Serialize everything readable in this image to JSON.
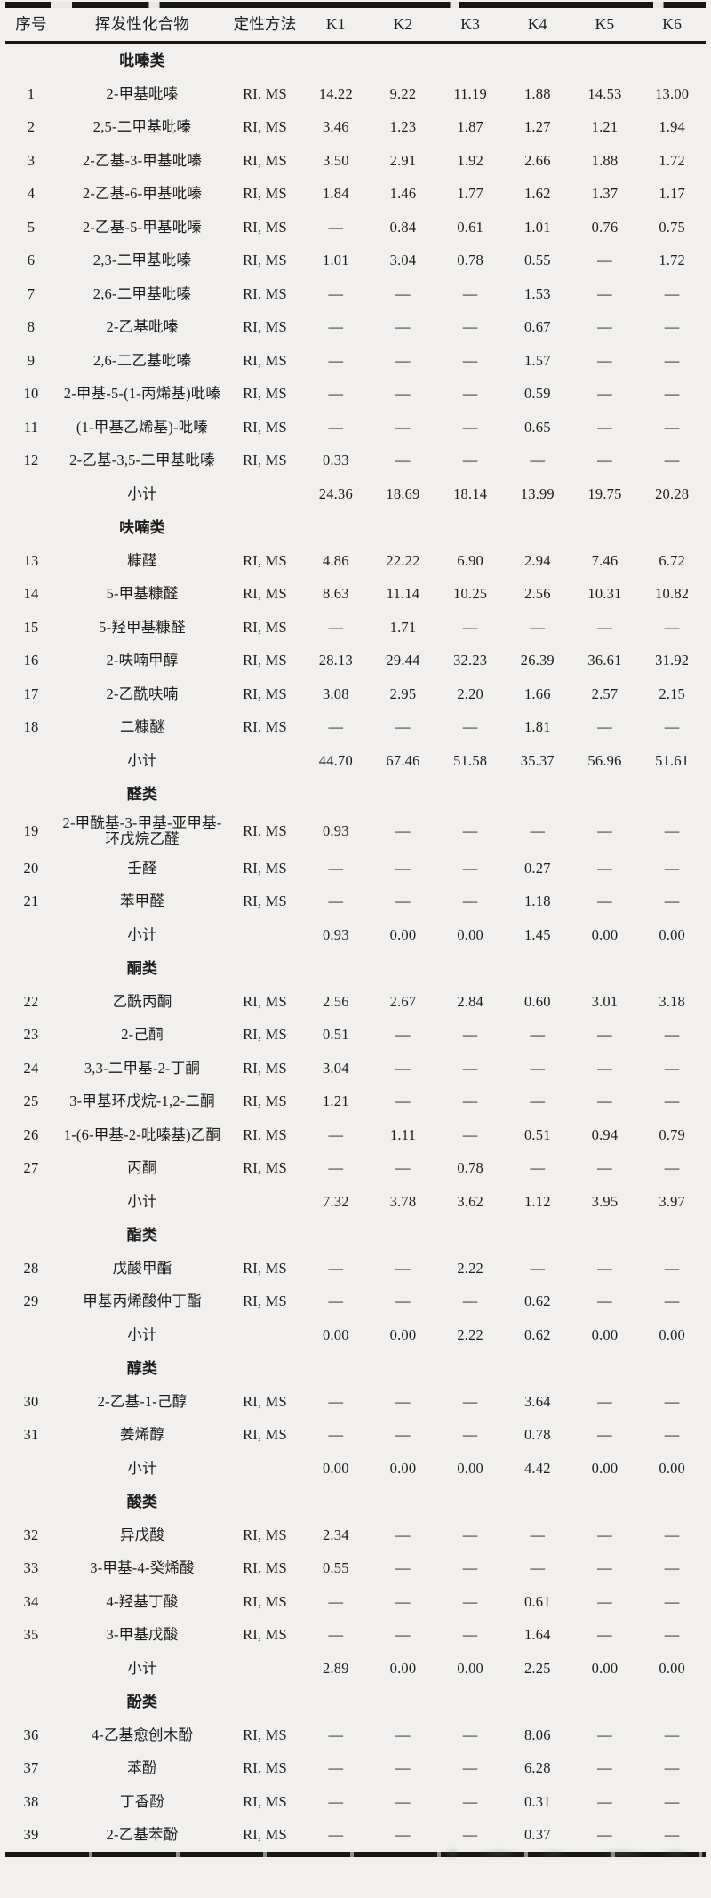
{
  "page_background": "#f1f0ee",
  "text_color": "#1c1c1c",
  "table": {
    "columns": [
      "序号",
      "挥发性化合物",
      "定性方法",
      "K1",
      "K2",
      "K3",
      "K4",
      "K5",
      "K6"
    ],
    "subtotal_label": "小计",
    "dash": "—",
    "sections": [
      {
        "name": "吡嗪类",
        "rows": [
          {
            "no": "1",
            "compound": "2-甲基吡嗪",
            "method": "RI, MS",
            "values": [
              "14.22",
              "9.22",
              "11.19",
              "1.88",
              "14.53",
              "13.00"
            ]
          },
          {
            "no": "2",
            "compound": "2,5-二甲基吡嗪",
            "method": "RI, MS",
            "values": [
              "3.46",
              "1.23",
              "1.87",
              "1.27",
              "1.21",
              "1.94"
            ]
          },
          {
            "no": "3",
            "compound": "2-乙基-3-甲基吡嗪",
            "method": "RI, MS",
            "values": [
              "3.50",
              "2.91",
              "1.92",
              "2.66",
              "1.88",
              "1.72"
            ]
          },
          {
            "no": "4",
            "compound": "2-乙基-6-甲基吡嗪",
            "method": "RI, MS",
            "values": [
              "1.84",
              "1.46",
              "1.77",
              "1.62",
              "1.37",
              "1.17"
            ]
          },
          {
            "no": "5",
            "compound": "2-乙基-5-甲基吡嗪",
            "method": "RI, MS",
            "values": [
              "—",
              "0.84",
              "0.61",
              "1.01",
              "0.76",
              "0.75"
            ]
          },
          {
            "no": "6",
            "compound": "2,3-二甲基吡嗪",
            "method": "RI, MS",
            "values": [
              "1.01",
              "3.04",
              "0.78",
              "0.55",
              "—",
              "1.72"
            ]
          },
          {
            "no": "7",
            "compound": "2,6-二甲基吡嗪",
            "method": "RI, MS",
            "values": [
              "—",
              "—",
              "—",
              "1.53",
              "—",
              "—"
            ]
          },
          {
            "no": "8",
            "compound": "2-乙基吡嗪",
            "method": "RI, MS",
            "values": [
              "—",
              "—",
              "—",
              "0.67",
              "—",
              "—"
            ]
          },
          {
            "no": "9",
            "compound": "2,6-二乙基吡嗪",
            "method": "RI, MS",
            "values": [
              "—",
              "—",
              "—",
              "1.57",
              "—",
              "—"
            ]
          },
          {
            "no": "10",
            "compound": "2-甲基-5-(1-丙烯基)吡嗪",
            "method": "RI, MS",
            "values": [
              "—",
              "—",
              "—",
              "0.59",
              "—",
              "—"
            ]
          },
          {
            "no": "11",
            "compound": "(1-甲基乙烯基)-吡嗪",
            "method": "RI, MS",
            "values": [
              "—",
              "—",
              "—",
              "0.65",
              "—",
              "—"
            ]
          },
          {
            "no": "12",
            "compound": "2-乙基-3,5-二甲基吡嗪",
            "method": "RI, MS",
            "values": [
              "0.33",
              "—",
              "—",
              "—",
              "—",
              "—"
            ]
          }
        ],
        "subtotal": [
          "24.36",
          "18.69",
          "18.14",
          "13.99",
          "19.75",
          "20.28"
        ]
      },
      {
        "name": "呋喃类",
        "rows": [
          {
            "no": "13",
            "compound": "糠醛",
            "method": "RI, MS",
            "values": [
              "4.86",
              "22.22",
              "6.90",
              "2.94",
              "7.46",
              "6.72"
            ]
          },
          {
            "no": "14",
            "compound": "5-甲基糠醛",
            "method": "RI, MS",
            "values": [
              "8.63",
              "11.14",
              "10.25",
              "2.56",
              "10.31",
              "10.82"
            ]
          },
          {
            "no": "15",
            "compound": "5-羟甲基糠醛",
            "method": "RI, MS",
            "values": [
              "—",
              "1.71",
              "—",
              "—",
              "—",
              "—"
            ]
          },
          {
            "no": "16",
            "compound": "2-呋喃甲醇",
            "method": "RI, MS",
            "values": [
              "28.13",
              "29.44",
              "32.23",
              "26.39",
              "36.61",
              "31.92"
            ]
          },
          {
            "no": "17",
            "compound": "2-乙酰呋喃",
            "method": "RI, MS",
            "values": [
              "3.08",
              "2.95",
              "2.20",
              "1.66",
              "2.57",
              "2.15"
            ]
          },
          {
            "no": "18",
            "compound": "二糠醚",
            "method": "RI, MS",
            "values": [
              "—",
              "—",
              "—",
              "1.81",
              "—",
              "—"
            ]
          }
        ],
        "subtotal": [
          "44.70",
          "67.46",
          "51.58",
          "35.37",
          "56.96",
          "51.61"
        ]
      },
      {
        "name": "醛类",
        "rows": [
          {
            "no": "19",
            "compound": "2-甲酰基-3-甲基-亚甲基-环戊烷乙醛",
            "method": "RI, MS",
            "values": [
              "0.93",
              "—",
              "—",
              "—",
              "—",
              "—"
            ]
          },
          {
            "no": "20",
            "compound": "壬醛",
            "method": "RI, MS",
            "values": [
              "—",
              "—",
              "—",
              "0.27",
              "—",
              "—"
            ]
          },
          {
            "no": "21",
            "compound": "苯甲醛",
            "method": "RI, MS",
            "values": [
              "—",
              "—",
              "—",
              "1.18",
              "—",
              "—"
            ]
          }
        ],
        "subtotal": [
          "0.93",
          "0.00",
          "0.00",
          "1.45",
          "0.00",
          "0.00"
        ]
      },
      {
        "name": "酮类",
        "rows": [
          {
            "no": "22",
            "compound": "乙酰丙酮",
            "method": "RI, MS",
            "values": [
              "2.56",
              "2.67",
              "2.84",
              "0.60",
              "3.01",
              "3.18"
            ]
          },
          {
            "no": "23",
            "compound": "2-己酮",
            "method": "RI, MS",
            "values": [
              "0.51",
              "—",
              "—",
              "—",
              "—",
              "—"
            ]
          },
          {
            "no": "24",
            "compound": "3,3-二甲基-2-丁酮",
            "method": "RI, MS",
            "values": [
              "3.04",
              "—",
              "—",
              "—",
              "—",
              "—"
            ]
          },
          {
            "no": "25",
            "compound": "3-甲基环戊烷-1,2-二酮",
            "method": "RI, MS",
            "values": [
              "1.21",
              "—",
              "—",
              "—",
              "—",
              "—"
            ]
          },
          {
            "no": "26",
            "compound": "1-(6-甲基-2-吡嗪基)乙酮",
            "method": "RI, MS",
            "values": [
              "—",
              "1.11",
              "—",
              "0.51",
              "0.94",
              "0.79"
            ]
          },
          {
            "no": "27",
            "compound": "丙酮",
            "method": "RI, MS",
            "values": [
              "—",
              "—",
              "0.78",
              "—",
              "—",
              "—"
            ]
          }
        ],
        "subtotal": [
          "7.32",
          "3.78",
          "3.62",
          "1.12",
          "3.95",
          "3.97"
        ]
      },
      {
        "name": "酯类",
        "rows": [
          {
            "no": "28",
            "compound": "戊酸甲酯",
            "method": "RI, MS",
            "values": [
              "—",
              "—",
              "2.22",
              "—",
              "—",
              "—"
            ]
          },
          {
            "no": "29",
            "compound": "甲基丙烯酸仲丁酯",
            "method": "RI, MS",
            "values": [
              "—",
              "—",
              "—",
              "0.62",
              "—",
              "—"
            ]
          }
        ],
        "subtotal": [
          "0.00",
          "0.00",
          "2.22",
          "0.62",
          "0.00",
          "0.00"
        ]
      },
      {
        "name": "醇类",
        "rows": [
          {
            "no": "30",
            "compound": "2-乙基-1-己醇",
            "method": "RI, MS",
            "values": [
              "—",
              "—",
              "—",
              "3.64",
              "—",
              "—"
            ]
          },
          {
            "no": "31",
            "compound": "姜烯醇",
            "method": "RI, MS",
            "values": [
              "—",
              "—",
              "—",
              "0.78",
              "—",
              "—"
            ]
          }
        ],
        "subtotal": [
          "0.00",
          "0.00",
          "0.00",
          "4.42",
          "0.00",
          "0.00"
        ]
      },
      {
        "name": "酸类",
        "rows": [
          {
            "no": "32",
            "compound": "异戊酸",
            "method": "RI, MS",
            "values": [
              "2.34",
              "—",
              "—",
              "—",
              "—",
              "—"
            ]
          },
          {
            "no": "33",
            "compound": "3-甲基-4-癸烯酸",
            "method": "RI, MS",
            "values": [
              "0.55",
              "—",
              "—",
              "—",
              "—",
              "—"
            ]
          },
          {
            "no": "34",
            "compound": "4-羟基丁酸",
            "method": "RI, MS",
            "values": [
              "—",
              "—",
              "—",
              "0.61",
              "—",
              "—"
            ]
          },
          {
            "no": "35",
            "compound": "3-甲基戊酸",
            "method": "RI, MS",
            "values": [
              "—",
              "—",
              "—",
              "1.64",
              "—",
              "—"
            ]
          }
        ],
        "subtotal": [
          "2.89",
          "0.00",
          "0.00",
          "2.25",
          "0.00",
          "0.00"
        ]
      },
      {
        "name": "酚类",
        "rows": [
          {
            "no": "36",
            "compound": "4-乙基愈创木酚",
            "method": "RI, MS",
            "values": [
              "—",
              "—",
              "—",
              "8.06",
              "—",
              "—"
            ]
          },
          {
            "no": "37",
            "compound": "苯酚",
            "method": "RI, MS",
            "values": [
              "—",
              "—",
              "—",
              "6.28",
              "—",
              "—"
            ]
          },
          {
            "no": "38",
            "compound": "丁香酚",
            "method": "RI, MS",
            "values": [
              "—",
              "—",
              "—",
              "0.31",
              "—",
              "—"
            ]
          },
          {
            "no": "39",
            "compound": "2-乙基苯酚",
            "method": "RI, MS",
            "values": [
              "—",
              "—",
              "—",
              "0.37",
              "—",
              "—"
            ]
          }
        ]
      }
    ]
  }
}
